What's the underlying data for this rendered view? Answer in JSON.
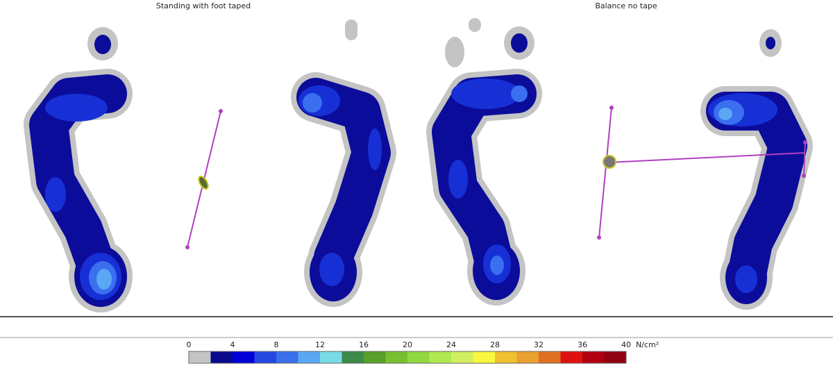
{
  "panels": [
    {
      "title": "Standing with foot taped"
    },
    {
      "title": "Balance no tape"
    }
  ],
  "scale": {
    "ticks": [
      0,
      4,
      8,
      12,
      16,
      20,
      24,
      28,
      32,
      36,
      40
    ],
    "unit": "N/cm²",
    "colors": [
      "#c4c4c4",
      "#0a0a8c",
      "#0000d8",
      "#2448e0",
      "#3a70ec",
      "#5aa8f4",
      "#78dce6",
      "#3a8a4a",
      "#58a02a",
      "#78c030",
      "#90d840",
      "#b0ea50",
      "#d0f060",
      "#f8f840",
      "#f0c030",
      "#e8a030",
      "#e07020",
      "#e01010",
      "#b00010",
      "#900010"
    ]
  }
}
